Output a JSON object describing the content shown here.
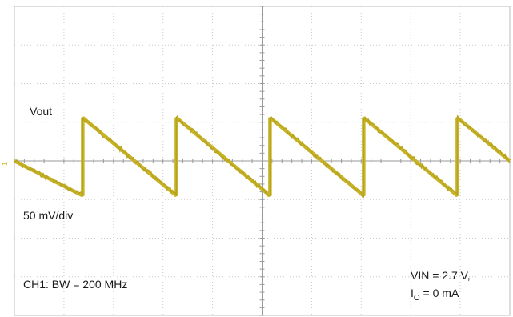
{
  "chart_data": {
    "type": "line",
    "title": "",
    "xlabel": "",
    "ylabel": "",
    "grid": true,
    "grid_divisions": {
      "horizontal": 10,
      "vertical": 8
    },
    "channel_marker": "1",
    "xlim": [
      0,
      10
    ],
    "ylim": [
      -200,
      200
    ],
    "series": [
      {
        "name": "Vout",
        "color": "#c8b428",
        "x": [
          0.0,
          1.38,
          1.38,
          3.27,
          3.27,
          5.16,
          5.16,
          7.05,
          7.05,
          8.94,
          8.94,
          10.0
        ],
        "y": [
          0,
          -45,
          56,
          -45,
          56,
          -45,
          56,
          -45,
          56,
          -45,
          56,
          0
        ]
      }
    ],
    "annotations": {
      "trace_label": "Vout",
      "scale": "50 mV/div",
      "bandwidth": "CH1: BW = 200 MHz",
      "vin": "VIN = 2.7 V,",
      "io_main": "I",
      "io_sub": "O",
      "io_value": " = 0 mA"
    }
  }
}
